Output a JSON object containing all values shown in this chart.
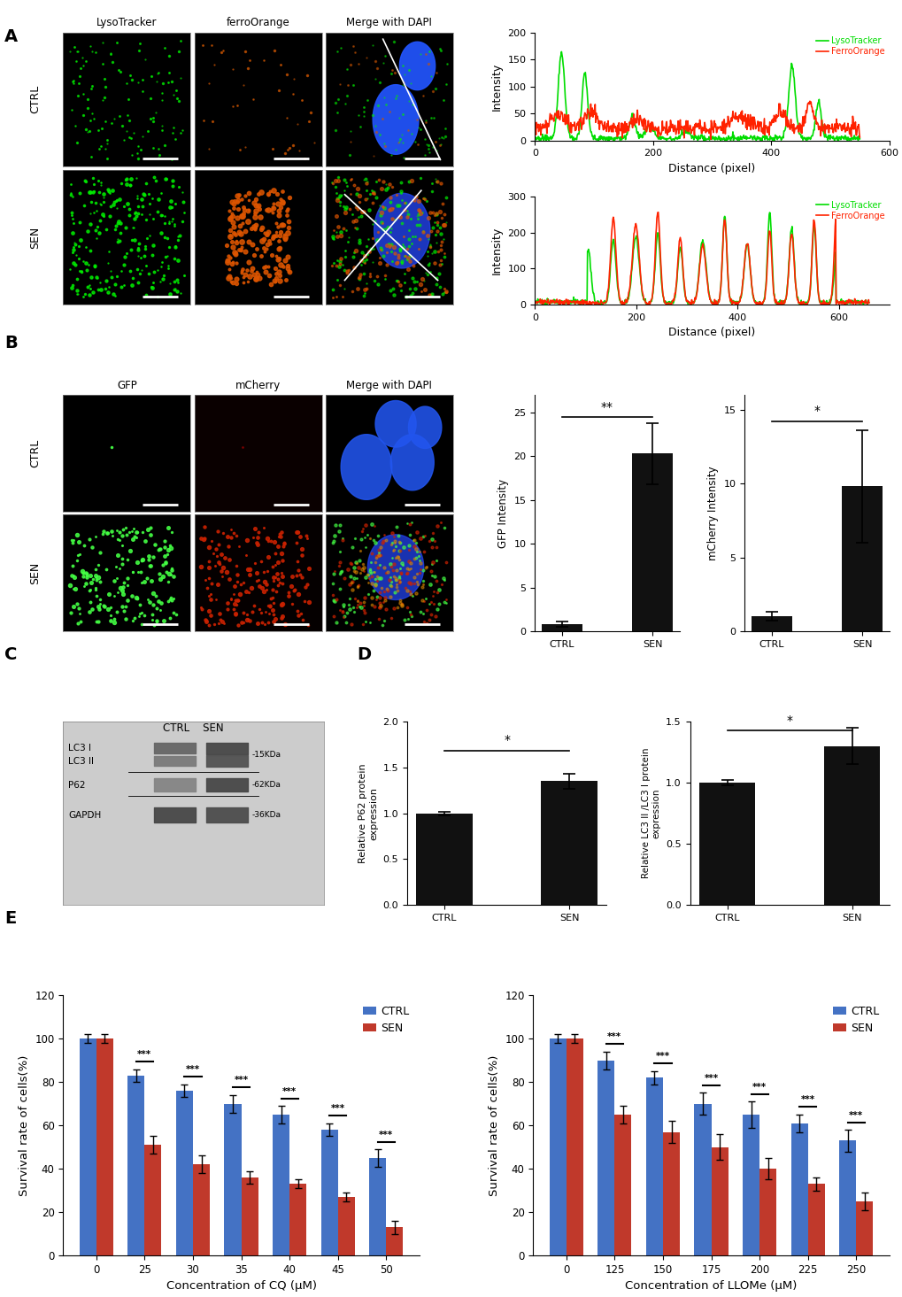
{
  "panel_labels": [
    "A",
    "B",
    "C",
    "D",
    "E"
  ],
  "ctrl_profile_xlabel": "Distance (pixel)",
  "ctrl_profile_ylabel": "Intensity",
  "ctrl_profile_xlim": [
    0,
    600
  ],
  "ctrl_profile_ylim": [
    0,
    200
  ],
  "ctrl_profile_yticks": [
    0,
    50,
    100,
    150,
    200
  ],
  "ctrl_profile_xticks": [
    0,
    200,
    400,
    600
  ],
  "sen_profile_xlabel": "Distance (pixel)",
  "sen_profile_ylabel": "Intensity",
  "sen_profile_xlim": [
    0,
    700
  ],
  "sen_profile_ylim": [
    0,
    300
  ],
  "sen_profile_yticks": [
    0,
    100,
    200,
    300
  ],
  "sen_profile_xticks": [
    0,
    200,
    400,
    600
  ],
  "lysotracker_color": "#00dd00",
  "ferroorange_color": "#ff2200",
  "gfp_bar_values": [
    0.8,
    20.3
  ],
  "gfp_bar_errors": [
    0.3,
    3.5
  ],
  "mcherry_bar_values": [
    1.0,
    9.8
  ],
  "mcherry_bar_errors": [
    0.3,
    3.8
  ],
  "bar_categories": [
    "CTRL",
    "SEN"
  ],
  "bar_color": "#111111",
  "p62_bar_values": [
    1.0,
    1.35
  ],
  "p62_bar_errors": [
    0.02,
    0.08
  ],
  "lc3_bar_values": [
    1.0,
    1.3
  ],
  "lc3_bar_errors": [
    0.02,
    0.15
  ],
  "cq_ctrl_values": [
    100,
    83,
    76,
    70,
    65,
    58,
    45
  ],
  "cq_ctrl_errors": [
    2,
    3,
    3,
    4,
    4,
    3,
    4
  ],
  "cq_sen_values": [
    100,
    51,
    42,
    36,
    33,
    27,
    13
  ],
  "cq_sen_errors": [
    2,
    4,
    4,
    3,
    2,
    2,
    3
  ],
  "cq_categories": [
    0,
    25,
    30,
    35,
    40,
    45,
    50
  ],
  "cq_xlabel": "Concentration of CQ (μM)",
  "llome_ctrl_values": [
    100,
    90,
    82,
    70,
    65,
    61,
    53
  ],
  "llome_ctrl_errors": [
    2,
    4,
    3,
    5,
    6,
    4,
    5
  ],
  "llome_sen_values": [
    100,
    65,
    57,
    50,
    40,
    33,
    25
  ],
  "llome_sen_errors": [
    2,
    4,
    5,
    6,
    5,
    3,
    4
  ],
  "llome_categories": [
    0,
    125,
    150,
    175,
    200,
    225,
    250
  ],
  "llome_xlabel": "Concentration of LLOMe (μM)",
  "survival_ylabel": "Survival rate of cells(%)",
  "ctrl_bar_color": "#4472c4",
  "sen_bar_color": "#c0392b",
  "background_color": "#ffffff",
  "img_labels_a": [
    "LysoTracker",
    "ferroOrange",
    "Merge with DAPI"
  ],
  "img_labels_b": [
    "GFP",
    "mCherry",
    "Merge with DAPI"
  ],
  "row_labels_ctrl": "CTRL",
  "row_labels_sen": "SEN"
}
